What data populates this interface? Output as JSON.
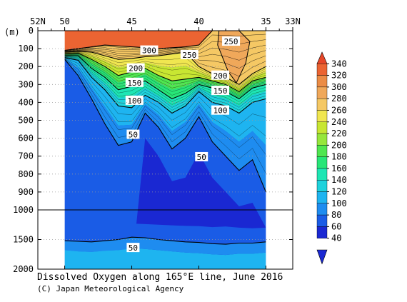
{
  "chart_data": {
    "type": "heatmap",
    "title": "Dissolved Oxygen along 165°E line, June 2016",
    "credit": "(C) Japan Meteorological Agency",
    "ylabel": "(m)",
    "x_ticks": [
      "52N",
      "50",
      "45",
      "40",
      "35",
      "33N"
    ],
    "x_tick_values": [
      52,
      50,
      45,
      40,
      35,
      33
    ],
    "xlim": [
      52,
      33
    ],
    "y_ticks_upper": [
      0,
      100,
      200,
      300,
      400,
      500,
      600,
      700,
      800,
      900,
      1000
    ],
    "y_ticks_lower": [
      1000,
      1500,
      2000
    ],
    "y_break": 1000,
    "data_lat_range": [
      50,
      35
    ],
    "colorbar_levels": [
      40,
      60,
      80,
      100,
      120,
      140,
      160,
      180,
      200,
      220,
      240,
      260,
      280,
      300,
      320,
      340
    ],
    "colorbar_colors": [
      "#1a28d2",
      "#1a5ce6",
      "#1e8cf0",
      "#1eb4f0",
      "#1ed2dc",
      "#1ee6b4",
      "#28e678",
      "#50e650",
      "#96e63c",
      "#c8e632",
      "#f0e650",
      "#f5c864",
      "#f0a85a",
      "#eb8c46",
      "#eb6432",
      "#e64628"
    ],
    "contour_labels": [
      {
        "text": "300",
        "lat": 43.7,
        "depth": 110
      },
      {
        "text": "250",
        "lat": 40.7,
        "depth": 135
      },
      {
        "text": "250",
        "lat": 37.6,
        "depth": 60
      },
      {
        "text": "200",
        "lat": 44.7,
        "depth": 210
      },
      {
        "text": "200",
        "lat": 38.4,
        "depth": 250
      },
      {
        "text": "150",
        "lat": 44.8,
        "depth": 290
      },
      {
        "text": "150",
        "lat": 38.4,
        "depth": 335
      },
      {
        "text": "100",
        "lat": 44.8,
        "depth": 390
      },
      {
        "text": "100",
        "lat": 38.4,
        "depth": 445
      },
      {
        "text": "50",
        "lat": 44.9,
        "depth": 580
      },
      {
        "text": "50",
        "lat": 39.8,
        "depth": 705
      },
      {
        "text": "50",
        "lat": 44.9,
        "depth": 1640
      }
    ],
    "profiles": {
      "lat": [
        50,
        49,
        48,
        47,
        46,
        45,
        44,
        43,
        42,
        41,
        40,
        39,
        38,
        37,
        36,
        35
      ],
      "d300": [
        110,
        100,
        90,
        80,
        85,
        90,
        95,
        100,
        95,
        90,
        80,
        0,
        0,
        0,
        0,
        0
      ],
      "d250": [
        120,
        115,
        120,
        140,
        160,
        155,
        145,
        140,
        130,
        120,
        200,
        240,
        260,
        300,
        240,
        200
      ],
      "d200": [
        130,
        125,
        160,
        200,
        250,
        230,
        210,
        250,
        280,
        270,
        260,
        280,
        300,
        340,
        280,
        260
      ],
      "d150": [
        140,
        140,
        210,
        260,
        330,
        310,
        280,
        330,
        380,
        350,
        300,
        320,
        340,
        380,
        320,
        300
      ],
      "d100": [
        150,
        165,
        260,
        330,
        420,
        430,
        360,
        400,
        460,
        420,
        340,
        400,
        420,
        460,
        400,
        380
      ],
      "d50": [
        160,
        250,
        380,
        520,
        640,
        620,
        460,
        540,
        660,
        600,
        480,
        620,
        700,
        780,
        720,
        900
      ],
      "d40": [
        2000,
        2000,
        2000,
        2000,
        2000,
        2000,
        600,
        700,
        840,
        820,
        680,
        820,
        900,
        980,
        960,
        1300
      ],
      "deep40top": [
        1250,
        1260,
        1250,
        1240,
        1230,
        1230,
        1240,
        1250,
        1260,
        1270,
        1275,
        1290,
        1280,
        1300,
        1310,
        1300
      ],
      "deep50": [
        1520,
        1530,
        1540,
        1520,
        1500,
        1460,
        1470,
        1500,
        1520,
        1540,
        1550,
        1570,
        1580,
        1560,
        1560,
        1540
      ],
      "deep60": [
        1680,
        1700,
        1710,
        1690,
        1680,
        1650,
        1660,
        1680,
        1700,
        1720,
        1730,
        1750,
        1760,
        1740,
        1740,
        1720
      ]
    }
  }
}
